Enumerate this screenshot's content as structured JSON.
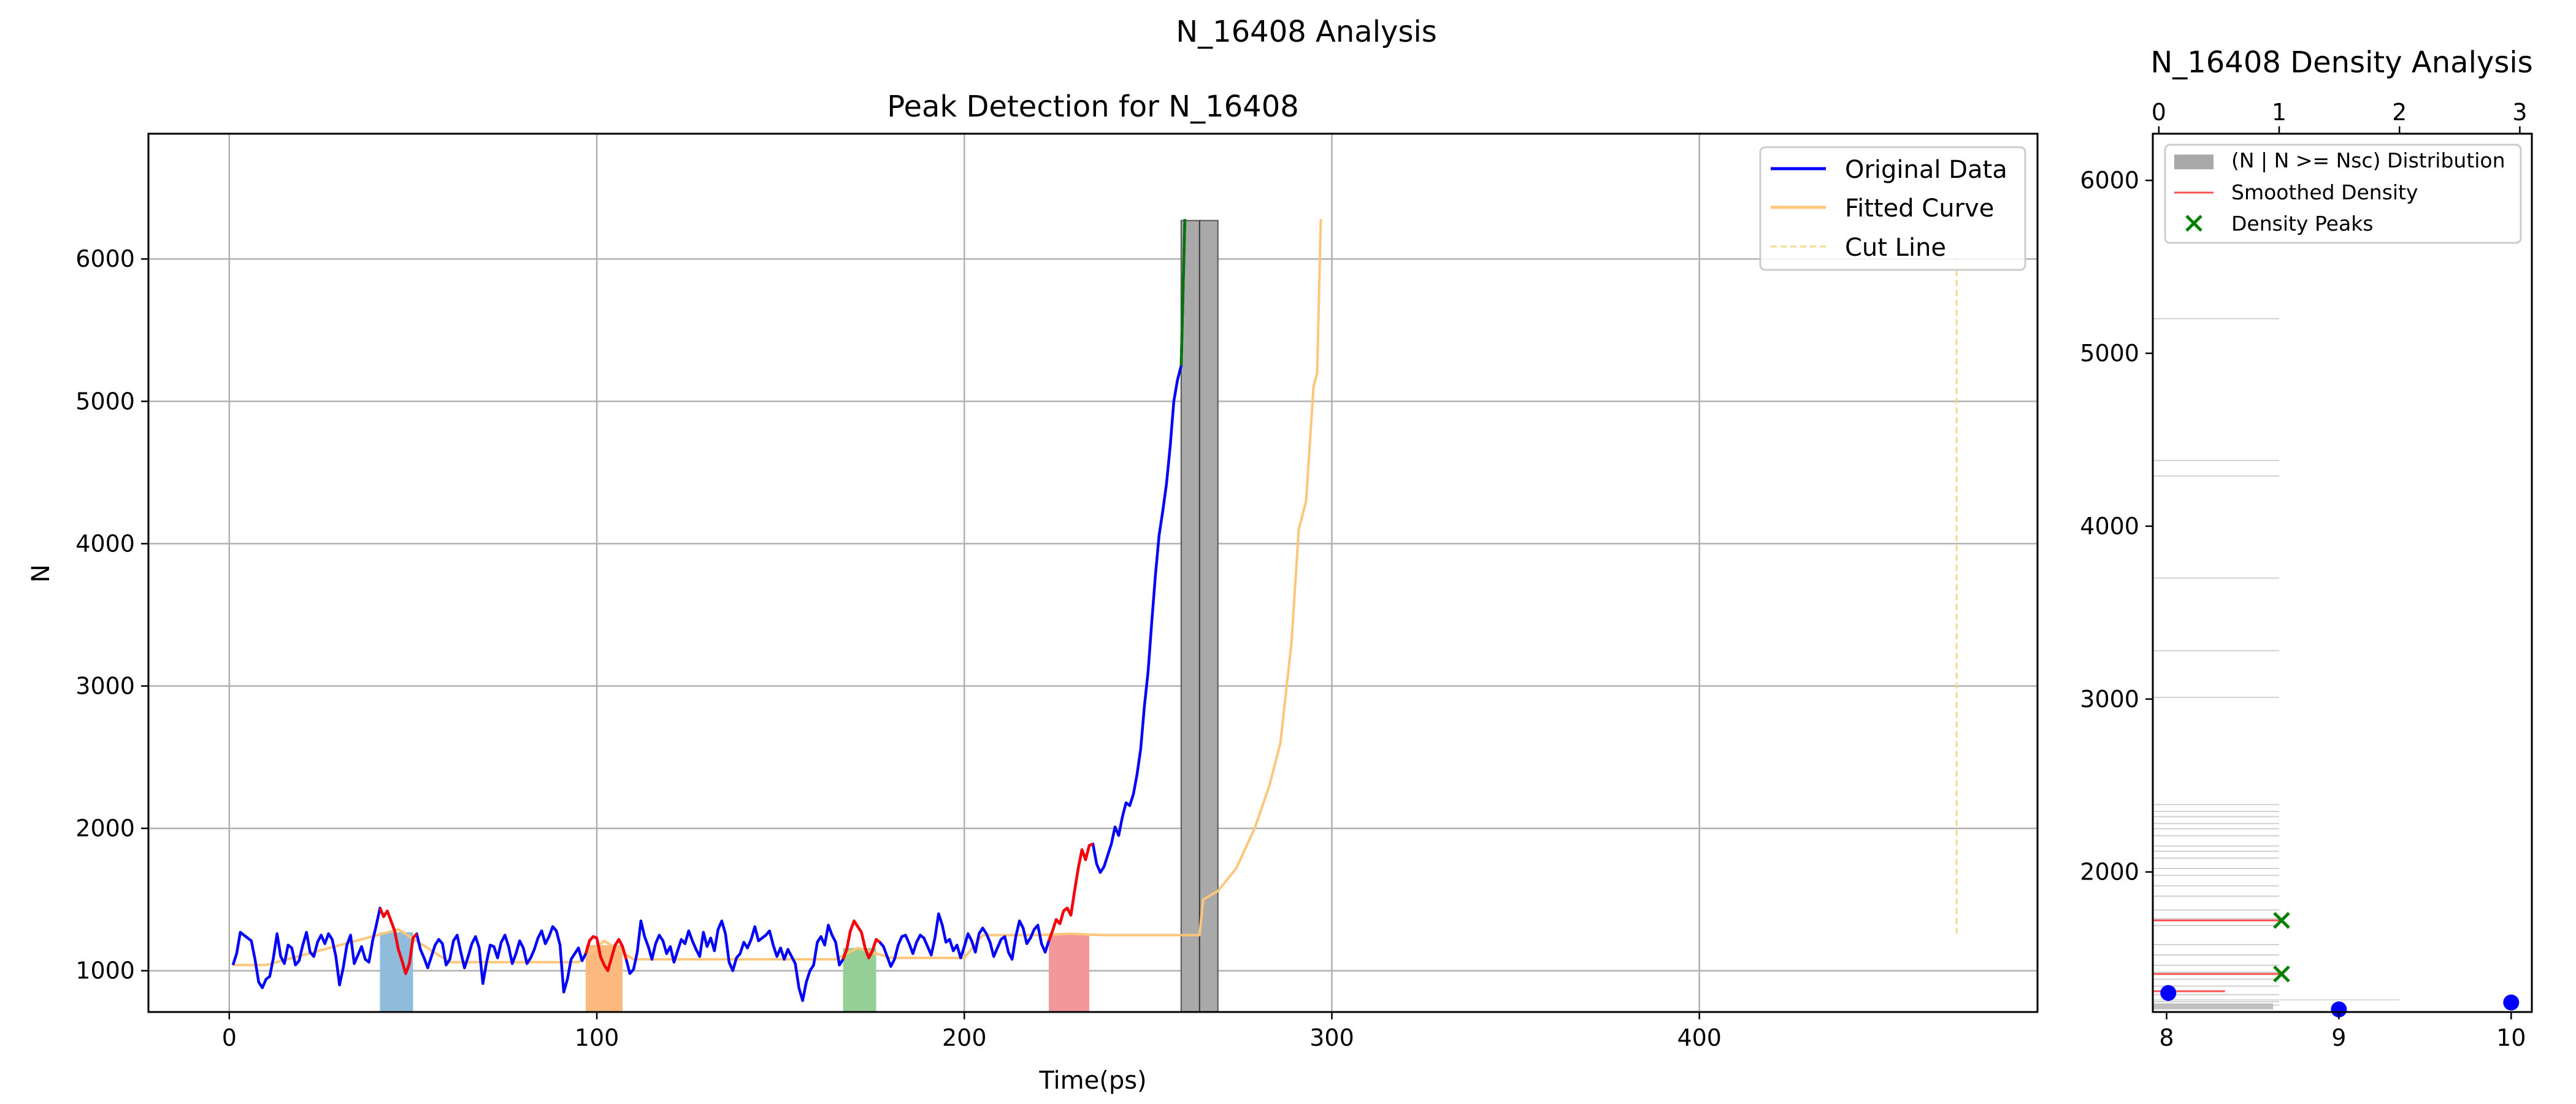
{
  "figure_title": "N_16408 Analysis",
  "colors": {
    "original": "#0000ff",
    "fitted": "#ffc679",
    "cut": "#f5d98c",
    "peak_segment": "#ff0000",
    "green_segment": "#007700",
    "purple_segment": "#7b3f8f",
    "hist_bar": "#a9a9a9",
    "smoothed": "#ff5050",
    "density_peak": "#008000",
    "density_dot": "#0000ff",
    "grid": "#b0b0b0"
  },
  "chart_data": [
    {
      "id": "peak",
      "type": "line",
      "title": "Peak Detection for N_16408",
      "xlabel": "Time(ps)",
      "ylabel": "N",
      "xlim": [
        -22,
        492
      ],
      "ylim": [
        710,
        6880
      ],
      "xticks": [
        0,
        100,
        200,
        300,
        400
      ],
      "yticks": [
        1000,
        2000,
        3000,
        4000,
        5000,
        6000
      ],
      "grid": true,
      "legend": {
        "position": "top-right",
        "entries": [
          "Original Data",
          "Fitted Curve",
          "Cut Line"
        ]
      },
      "series": [
        {
          "name": "Original Data",
          "x_start": 1,
          "x_step": 1,
          "y": [
            1040,
            1120,
            1270,
            1250,
            1230,
            1210,
            1080,
            920,
            880,
            940,
            960,
            1090,
            1260,
            1100,
            1050,
            1180,
            1160,
            1040,
            1070,
            1180,
            1270,
            1130,
            1100,
            1200,
            1250,
            1190,
            1260,
            1220,
            1100,
            900,
            1020,
            1180,
            1250,
            1050,
            1110,
            1170,
            1080,
            1060,
            1210,
            1320,
            1440,
            1380,
            1420,
            1350,
            1280,
            1150,
            1070,
            980,
            1050,
            1230,
            1260,
            1150,
            1090,
            1020,
            1100,
            1180,
            1220,
            1190,
            1040,
            1080,
            1210,
            1250,
            1130,
            1020,
            1100,
            1190,
            1240,
            1160,
            910,
            1060,
            1180,
            1170,
            1090,
            1200,
            1250,
            1170,
            1050,
            1120,
            1210,
            1160,
            1050,
            1090,
            1150,
            1230,
            1280,
            1190,
            1240,
            1310,
            1280,
            1180,
            850,
            940,
            1080,
            1120,
            1160,
            1070,
            1120,
            1210,
            1240,
            1230,
            1100,
            1040,
            1000,
            1090,
            1180,
            1220,
            1170,
            1080,
            980,
            1010,
            1130,
            1350,
            1240,
            1170,
            1080,
            1190,
            1250,
            1210,
            1120,
            1170,
            1060,
            1140,
            1220,
            1190,
            1280,
            1210,
            1150,
            1100,
            1270,
            1170,
            1230,
            1140,
            1290,
            1350,
            1260,
            1060,
            1000,
            1090,
            1120,
            1200,
            1160,
            1220,
            1310,
            1210,
            1230,
            1250,
            1280,
            1180,
            1100,
            1160,
            1080,
            1150,
            1100,
            1050,
            880,
            790,
            920,
            1000,
            1040,
            1200,
            1240,
            1180,
            1320,
            1250,
            1200,
            1040,
            1080,
            1150,
            1280,
            1350,
            1310,
            1270,
            1160,
            1090,
            1140,
            1220,
            1200,
            1170,
            1100,
            1030,
            1080,
            1180,
            1240,
            1250,
            1190,
            1120,
            1200,
            1250,
            1230,
            1170,
            1110,
            1230,
            1400,
            1320,
            1200,
            1220,
            1140,
            1180,
            1090,
            1170,
            1260,
            1210,
            1130,
            1260,
            1300,
            1260,
            1200,
            1100,
            1160,
            1220,
            1240,
            1130,
            1080,
            1240,
            1350,
            1300,
            1190,
            1230,
            1290,
            1320,
            1190,
            1130,
            1210,
            1280,
            1360,
            1330,
            1420,
            1440,
            1390,
            1560,
            1720,
            1850,
            1780,
            1880,
            1890,
            1750,
            1690,
            1730,
            1810,
            1890,
            2010,
            1950,
            2080,
            2180,
            2160,
            2240,
            2380,
            2560,
            2860,
            3100,
            3450,
            3780,
            4060,
            4230,
            4420,
            4680,
            5000,
            5150,
            5250,
            6280
          ]
        },
        {
          "name": "Fitted Curve",
          "note": "piecewise step fit"
        },
        {
          "name": "Cut Line",
          "x": 470,
          "y_range": [
            1260,
            5990
          ]
        }
      ],
      "peak_regions": [
        {
          "x_range": [
            41,
            50
          ],
          "y_top": 1270,
          "color": "#8fbcdb"
        },
        {
          "x_range": [
            97,
            107
          ],
          "y_top": 1180,
          "color": "#fcb97d"
        },
        {
          "x_range": [
            167,
            176
          ],
          "y_top": 1160,
          "color": "#95cf95"
        },
        {
          "x_range": [
            223,
            234
          ],
          "y_top": 1260,
          "color": "#f2979a"
        }
      ],
      "histogram_bar": {
        "x_range": [
          259,
          269
        ],
        "y_top": 6270,
        "center": 264
      }
    },
    {
      "id": "density",
      "type": "histogram",
      "title": "N_16408 Density Analysis",
      "top_xlim": [
        -0.05,
        3.1
      ],
      "top_xticks": [
        0,
        1,
        2,
        3
      ],
      "bottom_xlim": [
        7.92,
        10.12
      ],
      "bottom_xticks": [
        8,
        9,
        10
      ],
      "ylim": [
        1190,
        6270
      ],
      "yticks": [
        2000,
        3000,
        4000,
        5000,
        6000
      ],
      "legend": {
        "position": "top-left",
        "entries": [
          "(N | N >= Nsc) Distribution",
          "Smoothed Density",
          "Density Peaks"
        ]
      },
      "distribution_lines_y": [
        5200,
        4380,
        4290,
        3700,
        3280,
        3010,
        2390,
        2350,
        2320,
        2280,
        2250,
        2210,
        2150,
        2120,
        2080,
        2020,
        1980,
        1920,
        1860,
        1780,
        1730,
        1690,
        1580,
        1520,
        1460,
        1420,
        1380,
        1340,
        1290,
        1250,
        1230
      ],
      "smoothed_density": [
        {
          "y": 1720,
          "width": 1.0
        },
        {
          "y": 1410,
          "width": 1.0
        },
        {
          "y": 1310,
          "width": 0.55
        }
      ],
      "density_peaks": [
        {
          "x": 1.02,
          "y": 1720
        },
        {
          "x": 1.02,
          "y": 1410
        }
      ],
      "dots": [
        {
          "x": 8.01,
          "y": 1300
        },
        {
          "x": 9.0,
          "y": 1205
        },
        {
          "x": 10.0,
          "y": 1245
        }
      ]
    }
  ]
}
